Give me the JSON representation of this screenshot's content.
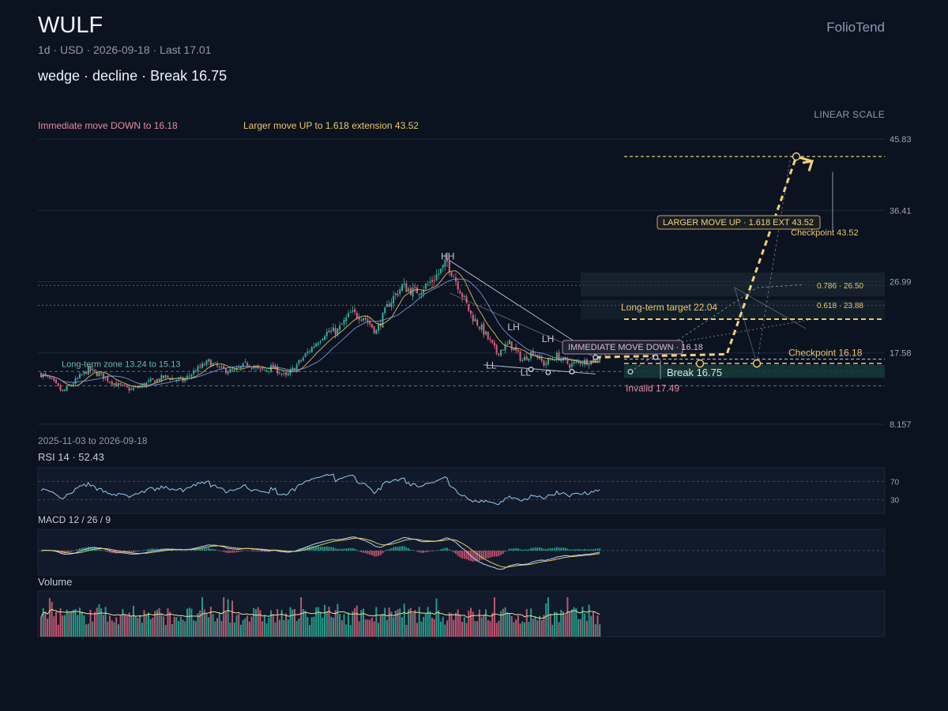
{
  "header": {
    "ticker": "WULF",
    "subtitle": "1d · USD · 2026-09-18 · Last 17.01",
    "pattern": "wedge · decline · Break 16.75",
    "brand": "FolioTend",
    "scale_mode": "LINEAR SCALE",
    "immediate_headline": "Immediate move DOWN to 16.18",
    "larger_headline": "Larger move UP to 1.618 extension 43.52"
  },
  "colors": {
    "background": "#0b1220",
    "up": "#2bb39a",
    "down": "#e0607a",
    "accent": "#f1d27a",
    "ma_fast": "#e8c86a",
    "ma_slow": "#7f9ee0",
    "rsi": "#9cc8ee",
    "macd_line": "#b8d6f6",
    "signal_line": "#e8c86a"
  },
  "chart_data": {
    "type": "candlestick",
    "date_range": "2025-11-03 to 2026-09-18",
    "y_axis": {
      "scale": "linear",
      "ticks": [
        45.83,
        36.41,
        26.99,
        17.58,
        8.157
      ],
      "ylim": [
        8.157,
        45.83
      ]
    },
    "last_price": 17.01,
    "anchors": [
      {
        "bar": 0,
        "close": 14.8
      },
      {
        "bar": 5,
        "close": 13.9
      },
      {
        "bar": 10,
        "close": 12.4
      },
      {
        "bar": 16,
        "close": 13.9
      },
      {
        "bar": 22,
        "close": 15.4
      },
      {
        "bar": 28,
        "close": 14.6
      },
      {
        "bar": 35,
        "close": 13.4
      },
      {
        "bar": 42,
        "close": 12.7
      },
      {
        "bar": 50,
        "close": 13.7
      },
      {
        "bar": 58,
        "close": 14.4
      },
      {
        "bar": 66,
        "close": 13.9
      },
      {
        "bar": 72,
        "close": 15.3
      },
      {
        "bar": 78,
        "close": 16.4
      },
      {
        "bar": 84,
        "close": 15.4
      },
      {
        "bar": 90,
        "close": 15.1
      },
      {
        "bar": 96,
        "close": 16.2
      },
      {
        "bar": 102,
        "close": 15.2
      },
      {
        "bar": 108,
        "close": 15.7
      },
      {
        "bar": 114,
        "close": 14.4
      },
      {
        "bar": 120,
        "close": 16.3
      },
      {
        "bar": 126,
        "close": 18.3
      },
      {
        "bar": 132,
        "close": 20.2
      },
      {
        "bar": 138,
        "close": 20.5
      },
      {
        "bar": 144,
        "close": 22.8
      },
      {
        "bar": 150,
        "close": 22.4
      },
      {
        "bar": 156,
        "close": 20.4
      },
      {
        "bar": 162,
        "close": 24.2
      },
      {
        "bar": 168,
        "close": 26.4
      },
      {
        "bar": 174,
        "close": 25.6
      },
      {
        "bar": 180,
        "close": 26.6
      },
      {
        "bar": 186,
        "close": 28.4
      },
      {
        "bar": 189,
        "close": 29.6
      },
      {
        "bar": 194,
        "close": 26.6
      },
      {
        "bar": 200,
        "close": 22.6
      },
      {
        "bar": 206,
        "close": 20.4
      },
      {
        "bar": 212,
        "close": 17.6
      },
      {
        "bar": 218,
        "close": 18.8
      },
      {
        "bar": 224,
        "close": 16.6
      },
      {
        "bar": 229,
        "close": 17.8
      },
      {
        "bar": 234,
        "close": 16.1
      },
      {
        "bar": 240,
        "close": 17.2
      },
      {
        "bar": 246,
        "close": 16.0
      },
      {
        "bar": 251,
        "close": 16.4
      },
      {
        "bar": 256,
        "close": 16.5
      },
      {
        "bar": 260,
        "close": 17.01
      }
    ],
    "levels": [
      {
        "label": "Long-term zone 13.24 to 15.13",
        "from": 13.24,
        "to": 15.13
      },
      {
        "label": "Long-term target 22.04",
        "value": 22.04
      },
      {
        "label": "Checkpoint 43.52",
        "value": 43.52
      },
      {
        "label": "Checkpoint 16.18",
        "value": 16.18
      },
      {
        "label": "Invalid 17.49",
        "value": 17.49
      },
      {
        "label": "Break 16.75",
        "value": 16.75
      },
      {
        "label": "IMMEDIATE MOVE DOWN · 16.18",
        "value": 16.18
      },
      {
        "label": "LARGER MOVE UP · 1.618 EXT 43.52",
        "value": 43.52
      },
      {
        "label": "0.786 · 26.50",
        "value": 26.5
      },
      {
        "label": "0.618 · 23.88",
        "value": 23.88
      }
    ],
    "swing_labels": [
      {
        "label": "HH",
        "bar": 189,
        "price": 29.9
      },
      {
        "label": "LH",
        "bar": 220,
        "price": 20.6
      },
      {
        "label": "LH",
        "bar": 236,
        "price": 19.0
      },
      {
        "label": "LH",
        "bar": 249,
        "price": 18.0
      },
      {
        "label": "LL",
        "bar": 210,
        "price": 15.5
      },
      {
        "label": "LL",
        "bar": 226,
        "price": 14.6
      }
    ],
    "indicators": {
      "rsi": {
        "title": "RSI 14 · 52.43",
        "value": 52.43,
        "levels": [
          "70",
          "30"
        ]
      },
      "macd": {
        "title": "MACD 12 / 26 / 9"
      },
      "volume": {
        "title": "Volume"
      }
    }
  }
}
